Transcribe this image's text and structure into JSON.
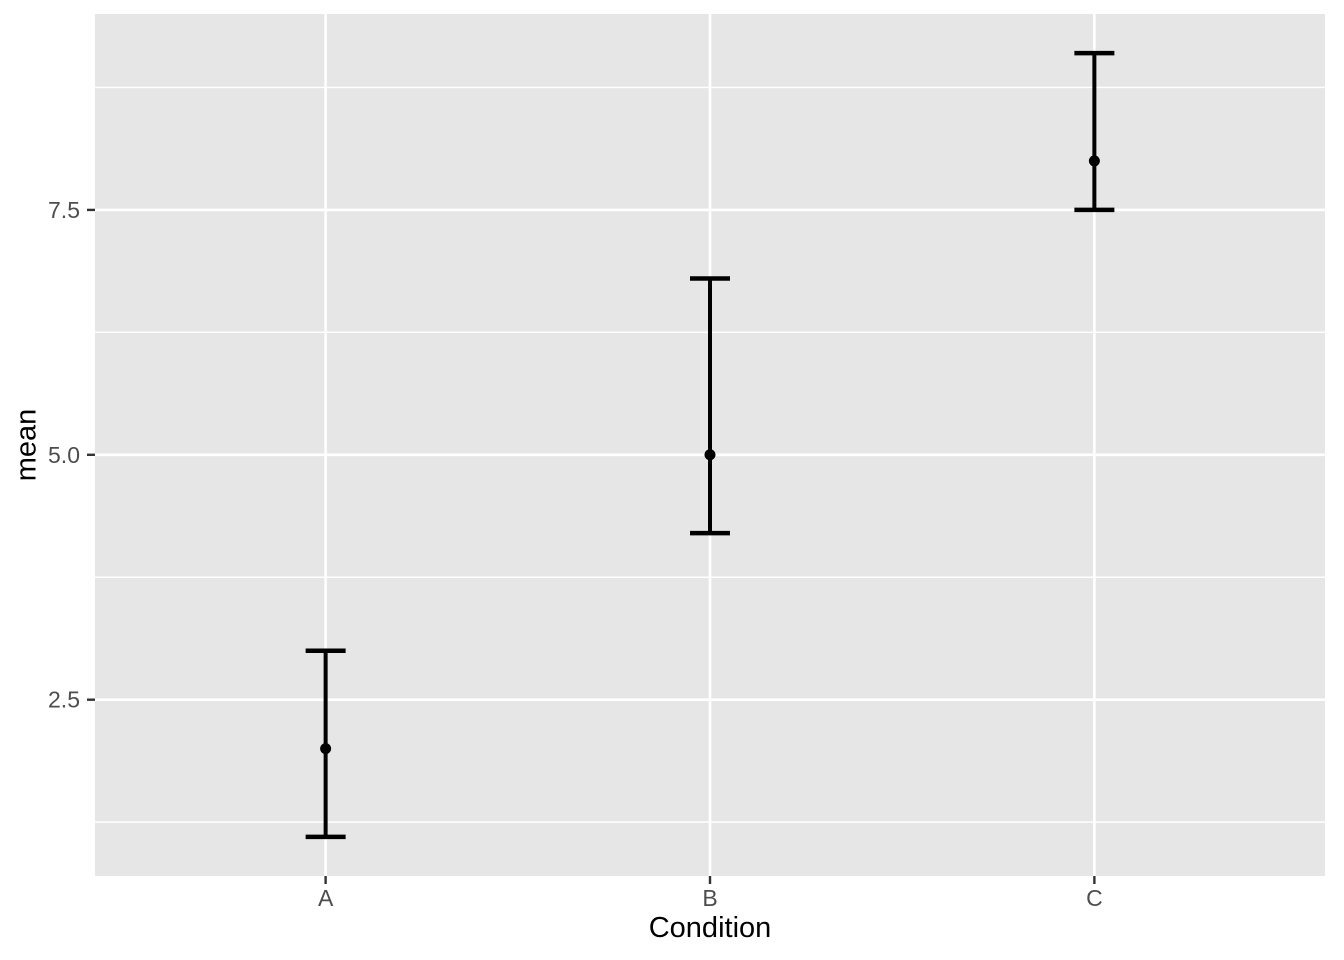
{
  "figure": {
    "background": "#FFFFFF"
  },
  "chart_data": {
    "type": "scatter",
    "subtype": "point-with-errorbars",
    "title": "",
    "xlabel": "Condition",
    "ylabel": "mean",
    "categories": [
      "A",
      "B",
      "C"
    ],
    "series": [
      {
        "name": "mean",
        "values": [
          2.0,
          5.0,
          8.0
        ],
        "error_low": [
          1.1,
          4.2,
          7.5
        ],
        "error_high": [
          3.0,
          6.8,
          9.1
        ]
      }
    ],
    "ylim": [
      0.7,
      9.5
    ],
    "y_ticks": [
      2.5,
      5.0,
      7.5
    ],
    "y_tick_labels": [
      "2.5",
      "5.0",
      "7.5"
    ],
    "y_minor_gridlines": [
      1.25,
      3.75,
      6.25,
      8.75
    ],
    "grid": "on",
    "legend": "none",
    "theme": "ggplot-gray",
    "colors": {
      "panel_background": "#E6E6E6",
      "gridline": "#FFFFFF",
      "point": "#000000",
      "errorbar": "#000000",
      "tick_label": "#4D4D4D",
      "axis_title": "#000000",
      "tick_mark": "#333333",
      "figure_background": "#FFFFFF"
    }
  }
}
